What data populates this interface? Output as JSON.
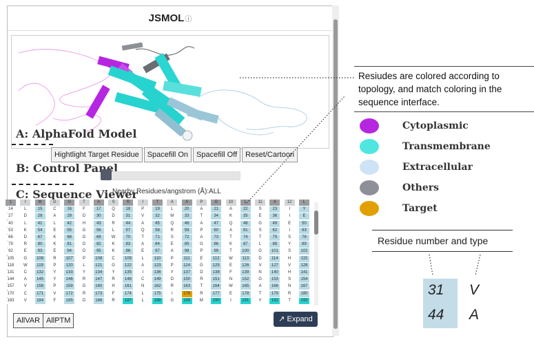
{
  "panel": {
    "title": "JSMOL",
    "info_icon": "ⓘ"
  },
  "layers": {
    "a": "A: AlphaFold Model",
    "b": "B: Control Panel",
    "c": "C: Sequence Viewer"
  },
  "controls": {
    "buttons": [
      "Hightlight Target Residue",
      "Spacefill On",
      "Spacefill Off",
      "Reset/Cartoon"
    ],
    "slider_caption": "Nearby Residues/angstrom (Å):ALL"
  },
  "sequence": {
    "rows": [
      [
        "1",
        "I",
        "M",
        "G",
        "G",
        "T",
        "A",
        "S",
        "R",
        "I",
        "T",
        "A",
        "A",
        "P",
        "G",
        "10",
        "L",
        "11",
        "A",
        "12",
        "L"
      ],
      [
        "14",
        "L",
        "15",
        "C",
        "16",
        "F",
        "17",
        "Q",
        "18",
        "P",
        "19",
        "L",
        "20",
        "A",
        "21",
        "A",
        "22",
        "S",
        "23",
        "I",
        "Y"
      ],
      [
        "27",
        "D",
        "28",
        "A",
        "29",
        "D",
        "30",
        "D",
        "31",
        "V",
        "32",
        "M",
        "33",
        "T",
        "34",
        "K",
        "35",
        "E",
        "36",
        "I",
        "E"
      ],
      [
        "40",
        "L",
        "41",
        "L",
        "42",
        "H",
        "43",
        "R",
        "44",
        "A",
        "45",
        "Q",
        "46",
        "A",
        "47",
        "Q",
        "48",
        "G",
        "49",
        "E",
        "50"
      ],
      [
        "53",
        "K",
        "54",
        "E",
        "55",
        "G",
        "56",
        "L",
        "57",
        "Q",
        "58",
        "R",
        "59",
        "P",
        "60",
        "A",
        "61",
        "S",
        "62",
        "I",
        "63"
      ],
      [
        "66",
        "D",
        "67",
        "K",
        "68",
        "G",
        "69",
        "W",
        "70",
        "T",
        "71",
        "S",
        "72",
        "A",
        "73",
        "T",
        "74",
        "T",
        "75",
        "S",
        "76"
      ],
      [
        "79",
        "R",
        "80",
        "K",
        "81",
        "D",
        "82",
        "K",
        "83",
        "A",
        "84",
        "E",
        "85",
        "G",
        "86",
        "K",
        "87",
        "L",
        "88",
        "Y",
        "89"
      ],
      [
        "92",
        "E",
        "93",
        "E",
        "94",
        "D",
        "95",
        "K",
        "96",
        "E",
        "97",
        "A",
        "98",
        "P",
        "99",
        "T",
        "100",
        "G",
        "101",
        "S",
        "102"
      ],
      [
        "105",
        "G",
        "106",
        "R",
        "107",
        "P",
        "108",
        "C",
        "109",
        "L",
        "110",
        "P",
        "111",
        "E",
        "112",
        "W",
        "113",
        "D",
        "114",
        "H",
        "115"
      ],
      [
        "118",
        "W",
        "119",
        "P",
        "120",
        "L",
        "121",
        "G",
        "122",
        "A",
        "123",
        "P",
        "124",
        "G",
        "125",
        "E",
        "126",
        "V",
        "127",
        "V",
        "128"
      ],
      [
        "131",
        "C",
        "132",
        "Y",
        "133",
        "Y",
        "134",
        "Y",
        "135",
        "I",
        "136",
        "Y",
        "137",
        "D",
        "138",
        "F",
        "139",
        "N",
        "140",
        "H",
        "141"
      ],
      [
        "144",
        "A",
        "145",
        "Y",
        "146",
        "R",
        "147",
        "R",
        "148",
        "C",
        "149",
        "D",
        "150",
        "R",
        "151",
        "N",
        "152",
        "G",
        "153",
        "S",
        "154"
      ],
      [
        "157",
        "V",
        "158",
        "P",
        "159",
        "G",
        "160",
        "H",
        "161",
        "N",
        "162",
        "R",
        "163",
        "T",
        "164",
        "W",
        "165",
        "A",
        "166",
        "N",
        "167"
      ],
      [
        "170",
        "C",
        "171",
        "V",
        "172",
        "R",
        "173",
        "F",
        "174",
        "L",
        "175",
        "I",
        "176",
        "R",
        "177",
        "E",
        "178",
        "T",
        "179",
        "R",
        "180"
      ],
      [
        "183",
        "V",
        "184",
        "F",
        "185",
        "D",
        "186",
        "R",
        "187",
        "L",
        "188",
        "G",
        "189",
        "M",
        "190",
        "I",
        "191",
        "Y",
        "192",
        "T",
        "193"
      ]
    ],
    "target_residue": "176"
  },
  "footer": {
    "allvar": "AllVAR",
    "allptm": "AllPTM",
    "expand": "Expand",
    "expand_icon": "↗"
  },
  "callout": "Resiudes are colored according to topology, and match coloring in the sequence interface.",
  "legend": [
    {
      "label": "Cytoplasmic",
      "color": "#b626e0"
    },
    {
      "label": "Transmembrane",
      "color": "#4fe6e0"
    },
    {
      "label": "Extracellular",
      "color": "#cfe3f6"
    },
    {
      "label": "Others",
      "color": "#8d9096"
    },
    {
      "label": "Target",
      "color": "#e2a000"
    }
  ],
  "residue_box": {
    "title": "Residue number and type",
    "n1": "31",
    "t1": "V",
    "n2": "44",
    "t2": "A"
  }
}
